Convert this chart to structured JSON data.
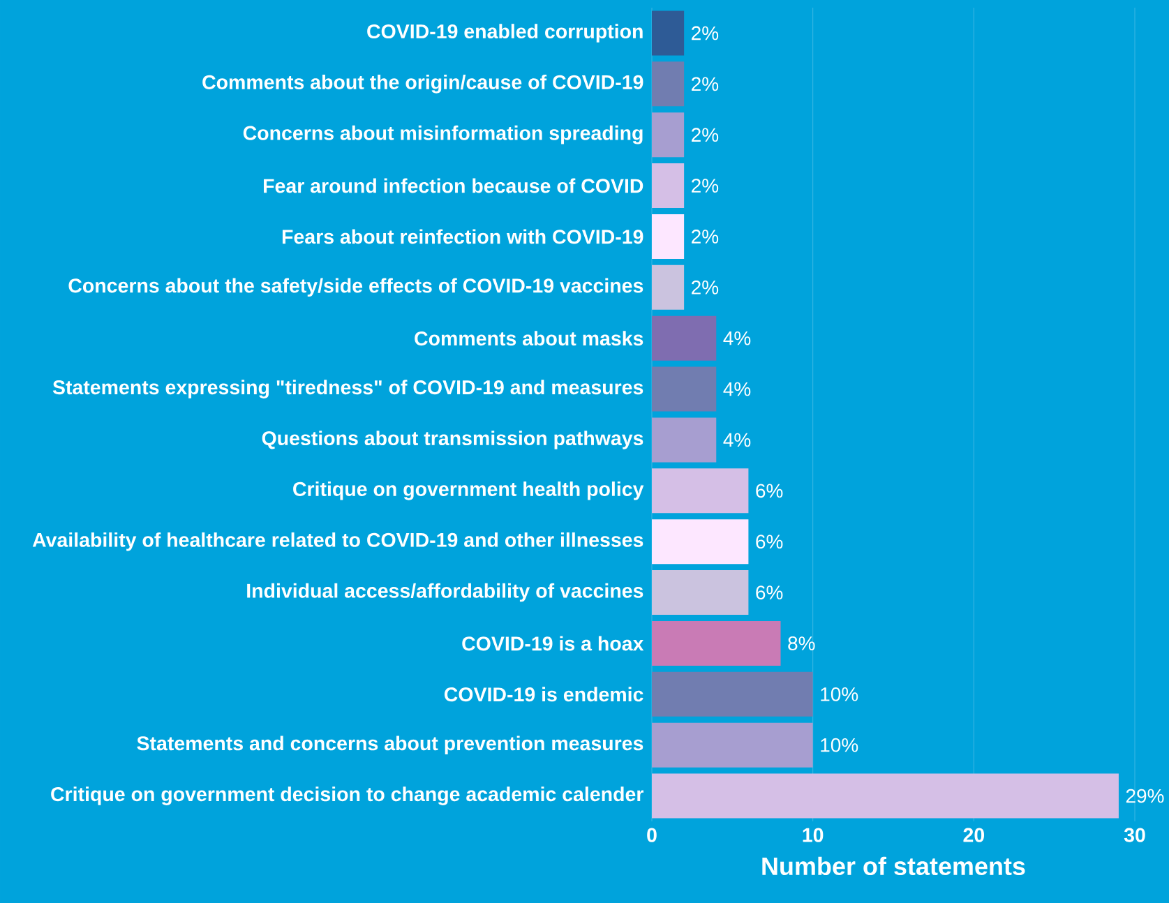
{
  "chart_data": {
    "type": "bar",
    "orientation": "horizontal",
    "xlabel": "Number of statements",
    "categories": [
      "COVID-19 enabled corruption",
      "Comments about the origin/cause of COVID-19",
      "Concerns about misinformation spreading",
      "Fear around infection because of COVID",
      "Fears about reinfection with COVID-19",
      "Concerns about the safety/side effects of COVID-19 vaccines",
      "Comments about masks",
      "Statements expressing \"tiredness\" of COVID-19 and measures",
      "Questions about transmission pathways",
      "Critique on government health policy",
      "Availability of healthcare related to COVID-19 and other illnesses",
      "Individual access/affordability of vaccines",
      "COVID-19 is a hoax",
      "COVID-19 is endemic",
      "Statements and concerns about prevention measures",
      "Critique on government decision to change academic calender"
    ],
    "values": [
      2,
      2,
      2,
      2,
      2,
      2,
      4,
      4,
      4,
      6,
      6,
      6,
      8,
      10,
      10,
      29
    ],
    "value_labels": [
      "2%",
      "2%",
      "2%",
      "2%",
      "2%",
      "2%",
      "4%",
      "4%",
      "4%",
      "6%",
      "6%",
      "6%",
      "8%",
      "10%",
      "10%",
      "29%"
    ],
    "colors": [
      "#2e5b96",
      "#717db0",
      "#a79ed0",
      "#d5bfe6",
      "#fde7ff",
      "#cbc3df",
      "#7f6db0",
      "#717db0",
      "#a79ed0",
      "#d5bfe6",
      "#fde7ff",
      "#cbc3df",
      "#c97bb5",
      "#717db0",
      "#a79ed0",
      "#d5bfe6"
    ],
    "xlim": [
      0,
      30
    ],
    "xticks": [
      0,
      10,
      20,
      30
    ],
    "grid": "x"
  }
}
